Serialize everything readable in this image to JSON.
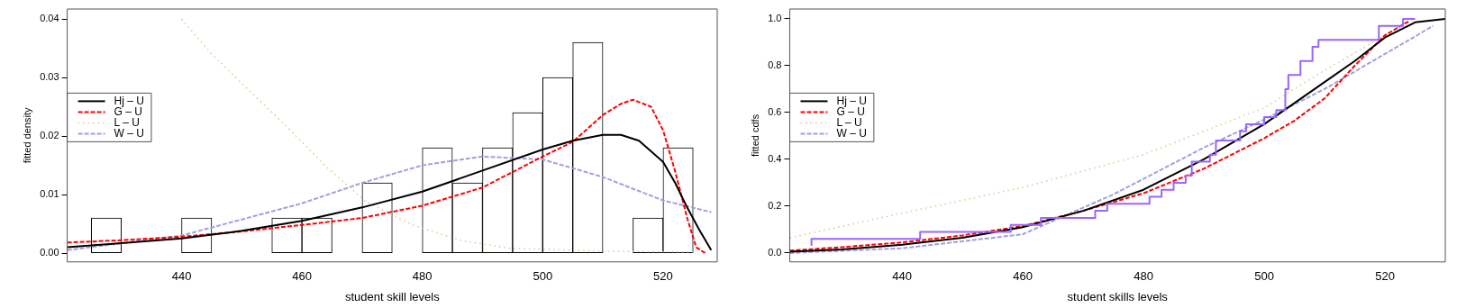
{
  "chart_data": [
    {
      "type": "histogram",
      "xlabel": "student skill levels",
      "ylabel": "fitted density",
      "color": "#ffffff",
      "legend": "left",
      "grid": false,
      "marker": "none",
      "bins": [
        425,
        430,
        435,
        440,
        445,
        450,
        455,
        460,
        465,
        470,
        475,
        480,
        485,
        490,
        495,
        500,
        505,
        510,
        515,
        520,
        525
      ],
      "values": [
        0.006,
        0,
        0,
        0.006,
        0,
        0,
        0.006,
        0.006,
        0,
        0.012,
        0,
        0.018,
        0.012,
        0.018,
        0.024,
        0.03,
        0.036,
        0,
        0.006,
        0.018
      ],
      "xlim": [
        421,
        529
      ],
      "xticks": [
        440,
        460,
        480,
        500,
        520
      ],
      "ylim": [
        -0.0015,
        0.0417
      ],
      "yticks": [
        {
          "value": 0,
          "label": "0.00"
        },
        {
          "value": 0.01,
          "label": "0.01"
        },
        {
          "value": 0.02,
          "label": "0.02"
        },
        {
          "value": 0.03,
          "label": "0.03"
        },
        {
          "value": 0.04,
          "label": "0.04"
        }
      ],
      "series": [
        {
          "name": "Hj – U",
          "type": "line",
          "color": "#000000",
          "line_style": "solid",
          "x": [
            421,
            430,
            440,
            450,
            460,
            470,
            480,
            490,
            500,
            505,
            510,
            513,
            516,
            520,
            522,
            524,
            526,
            528
          ],
          "values": [
            0.001,
            0.0017,
            0.0025,
            0.0038,
            0.0055,
            0.0078,
            0.0105,
            0.0141,
            0.0177,
            0.0192,
            0.0202,
            0.0202,
            0.0192,
            0.0156,
            0.012,
            0.0078,
            0.004,
            0.0005
          ]
        },
        {
          "name": "G – U",
          "type": "line",
          "color": "#ff0000",
          "line_style": "dashed",
          "x": [
            421,
            430,
            440,
            450,
            460,
            470,
            480,
            490,
            500,
            505,
            510,
            513,
            515,
            518,
            520,
            522,
            524,
            525.5,
            527
          ],
          "values": [
            0.0018,
            0.0022,
            0.0028,
            0.0037,
            0.0048,
            0.006,
            0.0081,
            0.0112,
            0.0165,
            0.019,
            0.0236,
            0.0255,
            0.0262,
            0.025,
            0.021,
            0.014,
            0.006,
            0.001,
            0
          ]
        },
        {
          "name": "L – U",
          "type": "line",
          "color": "#e0c890",
          "line_style": "dotted",
          "x": [
            440,
            445,
            451,
            457.5,
            464,
            470.5,
            478.6,
            486.7,
            494.8,
            511,
            525
          ],
          "values": [
            0.04,
            0.034,
            0.028,
            0.0216,
            0.0148,
            0.0089,
            0.0047,
            0.0021,
            0.0008,
            0.0003,
            0.0002
          ]
        },
        {
          "name": "W – U",
          "type": "line",
          "color": "#a0a0e0",
          "line_style": "dashed",
          "x": [
            421,
            440,
            460,
            470,
            480,
            490,
            500,
            510,
            520,
            528
          ],
          "values": [
            0.0005,
            0.003,
            0.0085,
            0.012,
            0.015,
            0.0165,
            0.016,
            0.013,
            0.009,
            0.007
          ]
        }
      ]
    },
    {
      "type": "line",
      "xlabel": "student skills levels",
      "ylabel": "fitted cdfs",
      "legend": "left",
      "grid": false,
      "marker": "none",
      "xlim": [
        421.4,
        530
      ],
      "xticks": [
        440,
        460,
        480,
        500,
        520
      ],
      "ylim": [
        -0.038,
        1.042
      ],
      "yticks": [
        {
          "value": 0,
          "label": "0.0"
        },
        {
          "value": 0.2,
          "label": "0.2"
        },
        {
          "value": 0.4,
          "label": "0.4"
        },
        {
          "value": 0.6,
          "label": "0.6"
        },
        {
          "value": 0.8,
          "label": "0.8"
        },
        {
          "value": 1,
          "label": "1.0"
        }
      ],
      "series": [
        {
          "type": "step",
          "color": "#9966ff",
          "line_style": "solid",
          "x": [
            425,
            443,
            458,
            463,
            472,
            474,
            481,
            483,
            485,
            487,
            488,
            491,
            492,
            496,
            497,
            500,
            502,
            503.5,
            504,
            506,
            508,
            509,
            519,
            523,
            524,
            525
          ],
          "values": [
            0.03,
            0.06,
            0.09,
            0.12,
            0.15,
            0.18,
            0.21,
            0.24,
            0.27,
            0.3,
            0.33,
            0.39,
            0.42,
            0.48,
            0.52,
            0.55,
            0.58,
            0.61,
            0.7,
            0.76,
            0.82,
            0.88,
            0.91,
            0.97,
            1.0,
            1.0
          ]
        },
        {
          "name": "Hj – U",
          "color": "#000000",
          "line_style": "solid",
          "x": [
            421.4,
            430,
            440,
            450,
            460,
            470,
            480,
            490,
            500,
            510,
            515,
            520,
            525,
            530
          ],
          "values": [
            0.005,
            0.015,
            0.035,
            0.065,
            0.11,
            0.18,
            0.27,
            0.4,
            0.55,
            0.73,
            0.82,
            0.92,
            0.985,
            1.0
          ]
        },
        {
          "name": "G – U",
          "color": "#ff0000",
          "line_style": "dashed",
          "x": [
            421.4,
            430,
            440,
            450,
            460,
            470,
            480,
            490,
            500,
            505,
            510,
            515,
            520,
            524
          ],
          "values": [
            0.01,
            0.025,
            0.045,
            0.075,
            0.115,
            0.18,
            0.255,
            0.36,
            0.49,
            0.565,
            0.66,
            0.8,
            0.93,
            0.99
          ]
        },
        {
          "name": "L – U",
          "color": "#e0c890",
          "line_style": "dotted",
          "x": [
            421.4,
            440,
            460,
            480,
            500,
            510,
            520,
            525
          ],
          "values": [
            0.065,
            0.17,
            0.28,
            0.42,
            0.62,
            0.78,
            0.93,
            1.0
          ]
        },
        {
          "name": "W – U",
          "color": "#a0a0e0",
          "line_style": "dashed",
          "x": [
            421.4,
            440,
            460,
            475,
            490,
            500,
            510,
            520,
            528
          ],
          "values": [
            0,
            0.02,
            0.08,
            0.25,
            0.45,
            0.57,
            0.7,
            0.85,
            0.97
          ]
        }
      ]
    }
  ]
}
